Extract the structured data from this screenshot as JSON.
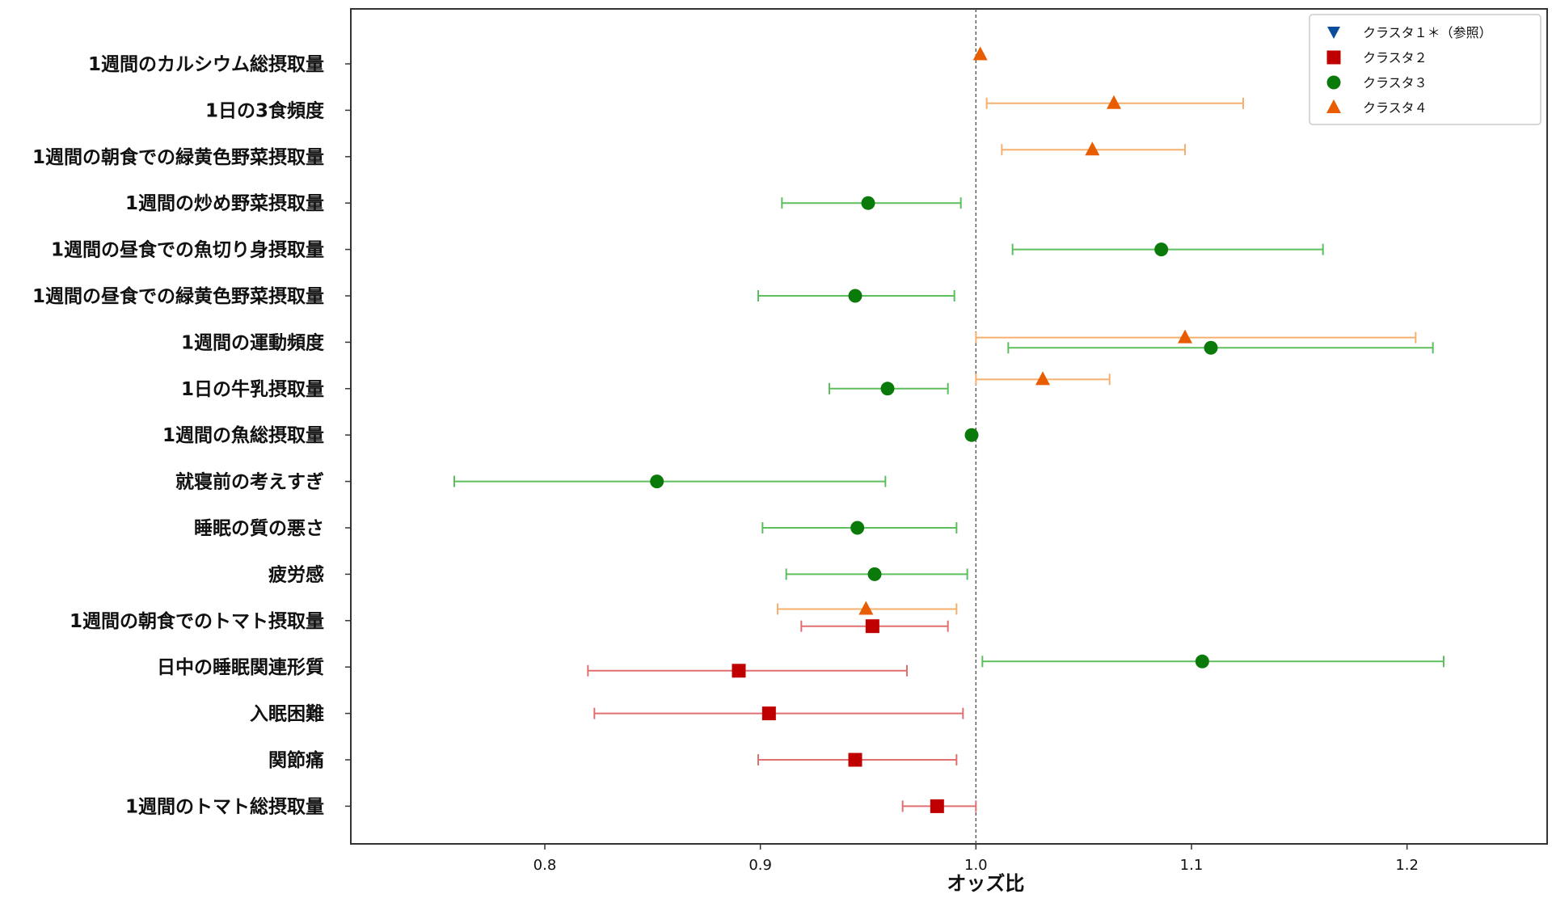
{
  "chart_data": {
    "type": "scatter",
    "subtype": "forest-plot",
    "title": "",
    "xlabel": "オッズ比",
    "ylabel": "",
    "xlim": [
      0.71,
      1.265
    ],
    "xticks": [
      "0.8",
      "0.9",
      "1.0",
      "1.1",
      "1.2"
    ],
    "reference_line": 1.0,
    "grid": false,
    "legend_position": "top-right",
    "categories": [
      "1週間のカルシウム総摂取量",
      "1日の3食頻度",
      "1週間の朝食での緑黄色野菜摂取量",
      "1週間の炒め野菜摂取量",
      "1週間の昼食での魚切り身摂取量",
      "1週間の昼食での緑黄色野菜摂取量",
      "1週間の運動頻度",
      "1日の牛乳摂取量",
      "1週間の魚総摂取量",
      "就寝前の考えすぎ",
      "睡眠の質の悪さ",
      "疲労感",
      "1週間の朝食でのトマト摂取量",
      "日中の睡眠関連形質",
      "入眠困難",
      "関節痛",
      "1週間のトマト総摂取量"
    ],
    "series": [
      {
        "name": "クラスタ１＊（参照）",
        "color": "#0b4c9c",
        "marker": "triangle-down",
        "points": []
      },
      {
        "name": "クラスタ２",
        "color": "#c00000",
        "ci_color": "#e07070",
        "marker": "square",
        "points": [
          {
            "category": 12,
            "or": 0.952,
            "lo": 0.919,
            "hi": 0.987,
            "offset": 0.12
          },
          {
            "category": 13,
            "or": 0.89,
            "lo": 0.82,
            "hi": 0.968,
            "offset": 0.08
          },
          {
            "category": 14,
            "or": 0.904,
            "lo": 0.823,
            "hi": 0.994,
            "offset": 0
          },
          {
            "category": 15,
            "or": 0.944,
            "lo": 0.899,
            "hi": 0.991,
            "offset": 0
          },
          {
            "category": 16,
            "or": 0.982,
            "lo": 0.966,
            "hi": 1.0,
            "offset": 0
          }
        ]
      },
      {
        "name": "クラスタ３",
        "color": "#0a7a0a",
        "ci_color": "#5cbf5c",
        "marker": "circle",
        "points": [
          {
            "category": 3,
            "or": 0.95,
            "lo": 0.91,
            "hi": 0.993,
            "offset": 0
          },
          {
            "category": 4,
            "or": 1.086,
            "lo": 1.017,
            "hi": 1.161,
            "offset": 0
          },
          {
            "category": 5,
            "or": 0.944,
            "lo": 0.899,
            "hi": 0.99,
            "offset": 0
          },
          {
            "category": 6,
            "or": 1.109,
            "lo": 1.015,
            "hi": 1.212,
            "offset": 0.12
          },
          {
            "category": 7,
            "or": 0.959,
            "lo": 0.932,
            "hi": 0.987,
            "offset": 0
          },
          {
            "category": 8,
            "or": 0.998,
            "lo": 0.998,
            "hi": 0.998,
            "offset": 0
          },
          {
            "category": 9,
            "or": 0.852,
            "lo": 0.758,
            "hi": 0.958,
            "offset": 0
          },
          {
            "category": 10,
            "or": 0.945,
            "lo": 0.901,
            "hi": 0.991,
            "offset": 0
          },
          {
            "category": 11,
            "or": 0.953,
            "lo": 0.912,
            "hi": 0.996,
            "offset": 0
          },
          {
            "category": 13,
            "or": 1.105,
            "lo": 1.003,
            "hi": 1.217,
            "offset": -0.12
          }
        ]
      },
      {
        "name": "クラスタ４",
        "color": "#e85d00",
        "ci_color": "#f5b070",
        "marker": "triangle-up",
        "points": [
          {
            "category": 0,
            "or": 1.002,
            "lo": 1.002,
            "hi": 1.002,
            "offset": -0.2
          },
          {
            "category": 1,
            "or": 1.064,
            "lo": 1.005,
            "hi": 1.124,
            "offset": -0.15
          },
          {
            "category": 2,
            "or": 1.054,
            "lo": 1.012,
            "hi": 1.097,
            "offset": -0.15
          },
          {
            "category": 6,
            "or": 1.097,
            "lo": 1.0,
            "hi": 1.204,
            "offset": -0.1
          },
          {
            "category": 7,
            "or": 1.031,
            "lo": 1.0,
            "hi": 1.062,
            "offset": -0.2
          },
          {
            "category": 12,
            "or": 0.949,
            "lo": 0.908,
            "hi": 0.991,
            "offset": -0.25
          }
        ]
      }
    ]
  }
}
